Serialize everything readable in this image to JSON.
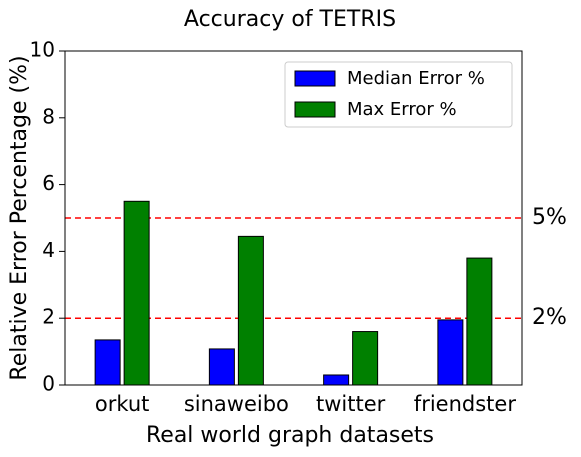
{
  "chart_data": {
    "type": "bar",
    "title": "Accuracy of TETRIS",
    "x_label": "Real world graph datasets",
    "y_label": "Relative Error Percentage (%)",
    "categories": [
      "orkut",
      "sinaweibo",
      "twitter",
      "friendster"
    ],
    "series": [
      {
        "name": "Median Error %",
        "color": "#0000ff",
        "values": [
          1.35,
          1.08,
          0.3,
          1.95
        ]
      },
      {
        "name": "Max Error %",
        "color": "#008000",
        "values": [
          5.5,
          4.45,
          1.6,
          3.8
        ]
      }
    ],
    "ylim": [
      0,
      10
    ],
    "yticks": [
      0,
      2,
      4,
      6,
      8,
      10
    ],
    "hlines": [
      {
        "value": 5,
        "label": "5%"
      },
      {
        "value": 2,
        "label": "2%"
      }
    ],
    "hline_color": "#ff0000",
    "legend": "upper right"
  }
}
